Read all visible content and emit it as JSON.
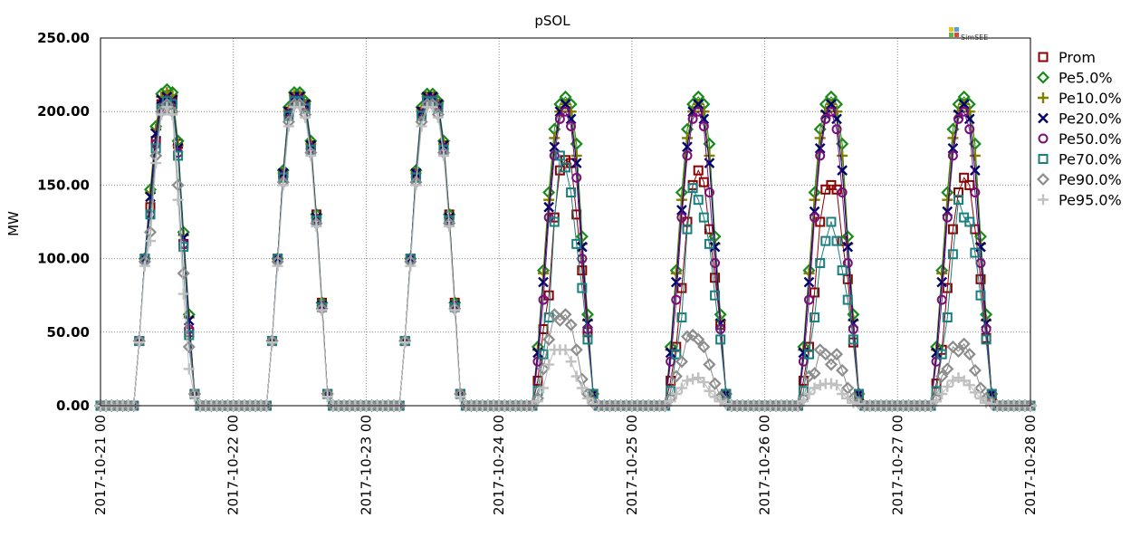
{
  "chart_data": {
    "type": "line",
    "title": "pSOL",
    "xlabel": "",
    "ylabel": "MW",
    "ylim": [
      0,
      250
    ],
    "yticks": [
      "0.00",
      "50.00",
      "100.00",
      "150.00",
      "200.00",
      "250.00"
    ],
    "xlim": [
      "2017-10-21 00",
      "2017-10-28 00"
    ],
    "xticks": [
      "2017-10-21 00",
      "2017-10-22 00",
      "2017-10-23 00",
      "2017-10-24 00",
      "2017-10-25 00",
      "2017-10-26 00",
      "2017-10-27 00",
      "2017-10-28 00"
    ],
    "grid": true,
    "legend_position": "right",
    "logo_text": "SimSEE",
    "x_hours": [
      6,
      7,
      8,
      9,
      10,
      11,
      12,
      13,
      14,
      15,
      16,
      17,
      18
    ],
    "series": [
      {
        "name": "Prom",
        "color": "#8b0000",
        "marker": "square",
        "days": [
          [
            0,
            44,
            100,
            135,
            180,
            205,
            210,
            208,
            178,
            110,
            50,
            8,
            0
          ],
          [
            0,
            44,
            100,
            158,
            200,
            210,
            210,
            205,
            177,
            130,
            70,
            8,
            0
          ],
          [
            0,
            44,
            100,
            158,
            200,
            210,
            210,
            205,
            177,
            130,
            70,
            8,
            0
          ],
          [
            0,
            17,
            52,
            75,
            128,
            160,
            167,
            165,
            130,
            92,
            50,
            8,
            0
          ],
          [
            0,
            17,
            40,
            80,
            125,
            150,
            160,
            152,
            120,
            87,
            55,
            8,
            0
          ],
          [
            0,
            17,
            40,
            77,
            125,
            147,
            150,
            147,
            112,
            86,
            43,
            6,
            0
          ],
          [
            0,
            15,
            38,
            80,
            120,
            145,
            155,
            150,
            120,
            86,
            46,
            6,
            0
          ]
        ]
      },
      {
        "name": "Pe5.0%",
        "color": "#1a8a1a",
        "marker": "diamond",
        "days": [
          [
            0,
            44,
            100,
            147,
            190,
            212,
            215,
            213,
            180,
            118,
            62,
            8,
            0
          ],
          [
            0,
            44,
            100,
            160,
            203,
            213,
            213,
            207,
            180,
            130,
            70,
            8,
            0
          ],
          [
            0,
            44,
            100,
            160,
            203,
            212,
            212,
            207,
            180,
            130,
            70,
            8,
            0
          ],
          [
            0,
            40,
            92,
            145,
            188,
            205,
            210,
            205,
            178,
            115,
            62,
            8,
            0
          ],
          [
            0,
            40,
            92,
            145,
            188,
            205,
            210,
            205,
            178,
            115,
            62,
            8,
            0
          ],
          [
            0,
            40,
            92,
            145,
            188,
            205,
            210,
            205,
            178,
            115,
            62,
            8,
            0
          ],
          [
            0,
            40,
            92,
            145,
            188,
            205,
            210,
            205,
            178,
            115,
            62,
            8,
            0
          ]
        ]
      },
      {
        "name": "Pe10.0%",
        "color": "#7f7f00",
        "marker": "plus",
        "days": [
          [
            0,
            44,
            100,
            145,
            188,
            210,
            213,
            211,
            177,
            116,
            60,
            8,
            0
          ],
          [
            0,
            44,
            100,
            158,
            201,
            211,
            211,
            205,
            178,
            128,
            68,
            8,
            0
          ],
          [
            0,
            44,
            100,
            158,
            201,
            210,
            210,
            205,
            178,
            128,
            68,
            8,
            0
          ],
          [
            0,
            38,
            90,
            140,
            182,
            200,
            205,
            200,
            170,
            110,
            58,
            8,
            0
          ],
          [
            0,
            38,
            90,
            140,
            182,
            200,
            205,
            200,
            170,
            110,
            58,
            8,
            0
          ],
          [
            0,
            38,
            90,
            140,
            182,
            200,
            205,
            200,
            170,
            110,
            58,
            8,
            0
          ],
          [
            0,
            38,
            90,
            140,
            182,
            200,
            205,
            200,
            170,
            110,
            58,
            8,
            0
          ]
        ]
      },
      {
        "name": "Pe20.0%",
        "color": "#00006e",
        "marker": "x",
        "days": [
          [
            0,
            44,
            100,
            142,
            185,
            208,
            210,
            208,
            175,
            114,
            58,
            8,
            0
          ],
          [
            0,
            44,
            100,
            158,
            200,
            210,
            210,
            205,
            177,
            128,
            68,
            8,
            0
          ],
          [
            0,
            44,
            100,
            158,
            200,
            210,
            210,
            205,
            177,
            128,
            68,
            8,
            0
          ],
          [
            0,
            36,
            84,
            135,
            176,
            200,
            205,
            195,
            165,
            108,
            56,
            8,
            0
          ],
          [
            0,
            36,
            84,
            133,
            176,
            200,
            205,
            195,
            165,
            108,
            56,
            8,
            0
          ],
          [
            0,
            36,
            84,
            132,
            175,
            198,
            205,
            195,
            160,
            108,
            56,
            8,
            0
          ],
          [
            0,
            36,
            84,
            132,
            175,
            198,
            205,
            195,
            160,
            108,
            56,
            8,
            0
          ]
        ]
      },
      {
        "name": "Pe50.0%",
        "color": "#7a0f7a",
        "marker": "circle",
        "days": [
          [
            0,
            44,
            100,
            130,
            178,
            203,
            208,
            206,
            172,
            110,
            52,
            8,
            0
          ],
          [
            0,
            44,
            100,
            156,
            198,
            208,
            208,
            203,
            175,
            127,
            68,
            8,
            0
          ],
          [
            0,
            44,
            100,
            156,
            198,
            208,
            208,
            203,
            175,
            127,
            68,
            8,
            0
          ],
          [
            0,
            30,
            72,
            128,
            170,
            195,
            200,
            190,
            155,
            100,
            52,
            8,
            0
          ],
          [
            0,
            30,
            72,
            128,
            170,
            195,
            200,
            190,
            145,
            97,
            52,
            8,
            0
          ],
          [
            0,
            30,
            72,
            128,
            170,
            195,
            200,
            188,
            145,
            97,
            52,
            8,
            0
          ],
          [
            0,
            30,
            72,
            128,
            170,
            195,
            200,
            188,
            145,
            97,
            52,
            8,
            0
          ]
        ]
      },
      {
        "name": "Pe70.0%",
        "color": "#1a7f7f",
        "marker": "square",
        "days": [
          [
            0,
            44,
            100,
            130,
            175,
            202,
            207,
            205,
            170,
            108,
            48,
            8,
            0
          ],
          [
            0,
            44,
            100,
            155,
            197,
            207,
            207,
            202,
            174,
            126,
            67,
            8,
            0
          ],
          [
            0,
            44,
            100,
            155,
            197,
            207,
            207,
            202,
            174,
            126,
            67,
            8,
            0
          ],
          [
            0,
            10,
            35,
            60,
            125,
            170,
            162,
            145,
            110,
            80,
            45,
            8,
            0
          ],
          [
            0,
            10,
            35,
            60,
            120,
            148,
            140,
            128,
            110,
            75,
            45,
            8,
            0
          ],
          [
            0,
            10,
            35,
            60,
            97,
            112,
            125,
            112,
            92,
            72,
            45,
            8,
            0
          ],
          [
            0,
            10,
            35,
            60,
            103,
            140,
            128,
            125,
            104,
            75,
            45,
            8,
            0
          ]
        ]
      },
      {
        "name": "Pe90.0%",
        "color": "#8c8c8c",
        "marker": "diamond",
        "days": [
          [
            0,
            44,
            98,
            118,
            170,
            200,
            205,
            200,
            150,
            90,
            40,
            8,
            0
          ],
          [
            0,
            44,
            98,
            152,
            193,
            205,
            205,
            198,
            172,
            124,
            66,
            8,
            0
          ],
          [
            0,
            44,
            98,
            152,
            193,
            205,
            205,
            198,
            172,
            124,
            66,
            8,
            0
          ],
          [
            0,
            5,
            25,
            45,
            62,
            58,
            62,
            55,
            38,
            18,
            8,
            2,
            0
          ],
          [
            0,
            5,
            20,
            30,
            47,
            48,
            45,
            40,
            28,
            15,
            6,
            2,
            0
          ],
          [
            0,
            5,
            20,
            22,
            38,
            35,
            28,
            35,
            24,
            12,
            5,
            2,
            0
          ],
          [
            0,
            5,
            20,
            25,
            40,
            37,
            42,
            35,
            24,
            12,
            5,
            2,
            0
          ]
        ]
      },
      {
        "name": "Pe95.0%",
        "color": "#c0c0c0",
        "marker": "plus",
        "days": [
          [
            0,
            43,
            95,
            112,
            165,
            198,
            203,
            198,
            140,
            76,
            25,
            6,
            0
          ],
          [
            0,
            43,
            95,
            150,
            190,
            203,
            203,
            196,
            170,
            122,
            65,
            6,
            0
          ],
          [
            0,
            43,
            95,
            150,
            190,
            203,
            203,
            196,
            170,
            122,
            65,
            6,
            0
          ],
          [
            0,
            3,
            12,
            28,
            38,
            38,
            38,
            30,
            20,
            12,
            5,
            1,
            0
          ],
          [
            0,
            3,
            8,
            12,
            17,
            18,
            19,
            16,
            10,
            6,
            3,
            1,
            0
          ],
          [
            0,
            3,
            8,
            12,
            14,
            15,
            15,
            14,
            8,
            5,
            2,
            1,
            0
          ],
          [
            0,
            3,
            8,
            13,
            17,
            19,
            17,
            14,
            9,
            5,
            2,
            1,
            0
          ]
        ]
      }
    ]
  }
}
